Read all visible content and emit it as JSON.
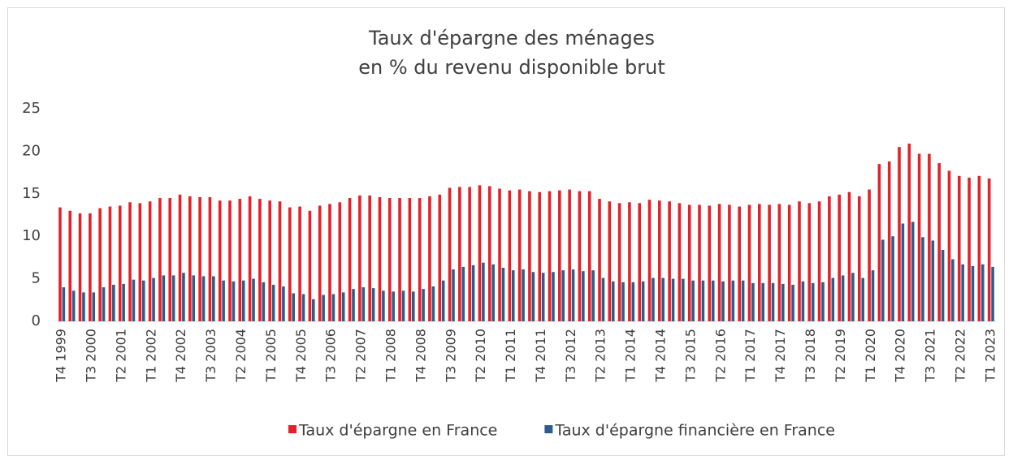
{
  "chart_data": {
    "type": "bar",
    "title": [
      "Taux d'épargne des ménages",
      "en % du revenu disponible brut"
    ],
    "categories": [
      "T4 1999",
      null,
      null,
      "T3 2000",
      null,
      null,
      "T2 2001",
      null,
      null,
      "T1 2002",
      null,
      null,
      "T4 2002",
      null,
      null,
      "T3 2003",
      null,
      null,
      "T2 2004",
      null,
      null,
      "T1 2005",
      null,
      null,
      "T4 2005",
      null,
      null,
      "T3 2006",
      null,
      null,
      "T2 2007",
      null,
      null,
      "T1 2008",
      null,
      null,
      "T4 2008",
      null,
      null,
      "T3 2009",
      null,
      null,
      "T2 2010",
      null,
      null,
      "T1 2011",
      null,
      null,
      "T4 2011",
      null,
      null,
      "T3 2012",
      null,
      null,
      "T2 2013",
      null,
      null,
      "T1 2014",
      null,
      null,
      "T4 2014",
      null,
      null,
      "T3 2015",
      null,
      null,
      "T2 2016",
      null,
      null,
      "T1 2017",
      null,
      null,
      "T4 2017",
      null,
      null,
      "T3 2018",
      null,
      null,
      "T2 2019",
      null,
      null,
      "T1 2020",
      null,
      null,
      "T4 2020",
      null,
      null,
      "T3 2021",
      null,
      null,
      "T2 2022",
      null,
      null,
      "T1 2023"
    ],
    "series": [
      {
        "name": "Taux d'épargne en France",
        "color": "#e3222b",
        "values": [
          13.4,
          13.0,
          12.7,
          12.7,
          13.3,
          13.5,
          13.6,
          14.0,
          13.9,
          14.1,
          14.5,
          14.5,
          14.9,
          14.7,
          14.6,
          14.6,
          14.2,
          14.2,
          14.4,
          14.7,
          14.4,
          14.2,
          14.1,
          13.4,
          13.5,
          13.0,
          13.6,
          13.8,
          14.0,
          14.5,
          14.8,
          14.8,
          14.6,
          14.5,
          14.5,
          14.5,
          14.5,
          14.7,
          14.9,
          15.7,
          15.8,
          15.8,
          16.0,
          15.9,
          15.6,
          15.4,
          15.5,
          15.3,
          15.2,
          15.3,
          15.4,
          15.5,
          15.3,
          15.3,
          14.4,
          14.1,
          13.9,
          14.0,
          13.9,
          14.3,
          14.2,
          14.1,
          13.9,
          13.7,
          13.7,
          13.6,
          13.8,
          13.7,
          13.5,
          13.7,
          13.8,
          13.7,
          13.8,
          13.7,
          14.1,
          13.9,
          14.1,
          14.7,
          14.9,
          15.2,
          14.7,
          15.5,
          18.5,
          18.8,
          20.5,
          20.9,
          19.7,
          19.7,
          18.6,
          17.7,
          17.1,
          16.9,
          17.1,
          16.8
        ]
      },
      {
        "name": "Taux d'épargne financière en France",
        "color": "#2e5d8c",
        "values": [
          4.0,
          3.6,
          3.4,
          3.4,
          4.0,
          4.3,
          4.4,
          4.9,
          4.8,
          5.1,
          5.4,
          5.4,
          5.7,
          5.4,
          5.3,
          5.3,
          4.8,
          4.7,
          4.8,
          5.0,
          4.6,
          4.3,
          4.1,
          3.3,
          3.2,
          2.6,
          3.1,
          3.2,
          3.4,
          3.8,
          4.0,
          3.9,
          3.6,
          3.5,
          3.6,
          3.5,
          3.8,
          4.1,
          4.8,
          6.1,
          6.4,
          6.6,
          6.9,
          6.7,
          6.3,
          6.0,
          6.1,
          5.8,
          5.7,
          5.8,
          6.0,
          6.1,
          5.9,
          6.0,
          5.1,
          4.7,
          4.6,
          4.6,
          4.7,
          5.1,
          5.1,
          5.0,
          5.0,
          4.8,
          4.8,
          4.8,
          4.7,
          4.8,
          4.8,
          4.5,
          4.5,
          4.5,
          4.4,
          4.3,
          4.7,
          4.5,
          4.6,
          5.1,
          5.4,
          5.7,
          5.1,
          6.0,
          9.6,
          10.0,
          11.5,
          11.7,
          9.9,
          9.5,
          8.4,
          7.3,
          6.7,
          6.5,
          6.7,
          6.4
        ]
      }
    ],
    "ylim": [
      0,
      25
    ],
    "yticks": [
      0,
      5,
      10,
      15,
      20,
      25
    ],
    "grid": false,
    "legend": "bottom"
  }
}
